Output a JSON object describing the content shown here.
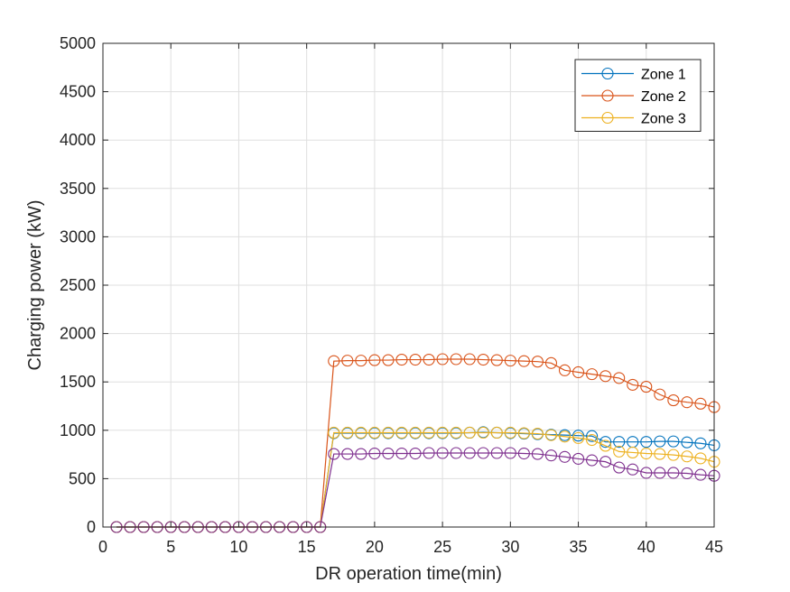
{
  "chart_data": {
    "type": "line",
    "xlabel": "DR operation time(min)",
    "ylabel": "Charging power (kW)",
    "xlim": [
      0,
      45
    ],
    "ylim": [
      0,
      5000
    ],
    "xticks": [
      0,
      5,
      10,
      15,
      20,
      25,
      30,
      35,
      40,
      45
    ],
    "yticks": [
      0,
      500,
      1000,
      1500,
      2000,
      2500,
      3000,
      3500,
      4000,
      4500,
      5000
    ],
    "grid": true,
    "legend_placement": "top-right",
    "marker": "circle",
    "x": [
      1,
      2,
      3,
      4,
      5,
      6,
      7,
      8,
      9,
      10,
      11,
      12,
      13,
      14,
      15,
      16,
      17,
      18,
      19,
      20,
      21,
      22,
      23,
      24,
      25,
      26,
      27,
      28,
      29,
      30,
      31,
      32,
      33,
      34,
      35,
      36,
      37,
      38,
      39,
      40,
      41,
      42,
      43,
      44,
      45
    ],
    "series": [
      {
        "name": "Zone 1",
        "color": "#0072BD",
        "legend": true,
        "values": [
          0,
          0,
          0,
          0,
          0,
          0,
          0,
          0,
          0,
          0,
          0,
          0,
          0,
          0,
          0,
          0,
          970,
          970,
          970,
          970,
          970,
          970,
          970,
          970,
          970,
          970,
          975,
          980,
          975,
          970,
          965,
          960,
          955,
          950,
          945,
          940,
          880,
          880,
          880,
          880,
          885,
          885,
          875,
          865,
          845
        ]
      },
      {
        "name": "Zone 2",
        "color": "#D95319",
        "legend": true,
        "values": [
          0,
          0,
          0,
          0,
          0,
          0,
          0,
          0,
          0,
          0,
          0,
          0,
          0,
          0,
          0,
          0,
          1715,
          1720,
          1720,
          1725,
          1725,
          1730,
          1730,
          1730,
          1735,
          1735,
          1735,
          1730,
          1725,
          1720,
          1715,
          1710,
          1695,
          1620,
          1600,
          1580,
          1560,
          1540,
          1470,
          1450,
          1370,
          1310,
          1290,
          1275,
          1240
        ]
      },
      {
        "name": "Zone 3",
        "color": "#EDB120",
        "legend": true,
        "values": [
          0,
          0,
          0,
          0,
          0,
          0,
          0,
          0,
          0,
          0,
          0,
          0,
          0,
          0,
          0,
          0,
          975,
          975,
          975,
          975,
          975,
          975,
          975,
          975,
          975,
          975,
          975,
          975,
          975,
          975,
          970,
          965,
          950,
          935,
          920,
          900,
          840,
          780,
          770,
          760,
          755,
          745,
          730,
          710,
          675
        ]
      },
      {
        "name": "",
        "color": "#7E2F8E",
        "legend": false,
        "values": [
          0,
          0,
          0,
          0,
          0,
          0,
          0,
          0,
          0,
          0,
          0,
          0,
          0,
          0,
          0,
          0,
          755,
          755,
          755,
          760,
          760,
          760,
          760,
          765,
          765,
          765,
          765,
          765,
          765,
          765,
          760,
          755,
          740,
          725,
          705,
          690,
          675,
          615,
          595,
          560,
          560,
          560,
          555,
          540,
          530
        ]
      }
    ]
  }
}
